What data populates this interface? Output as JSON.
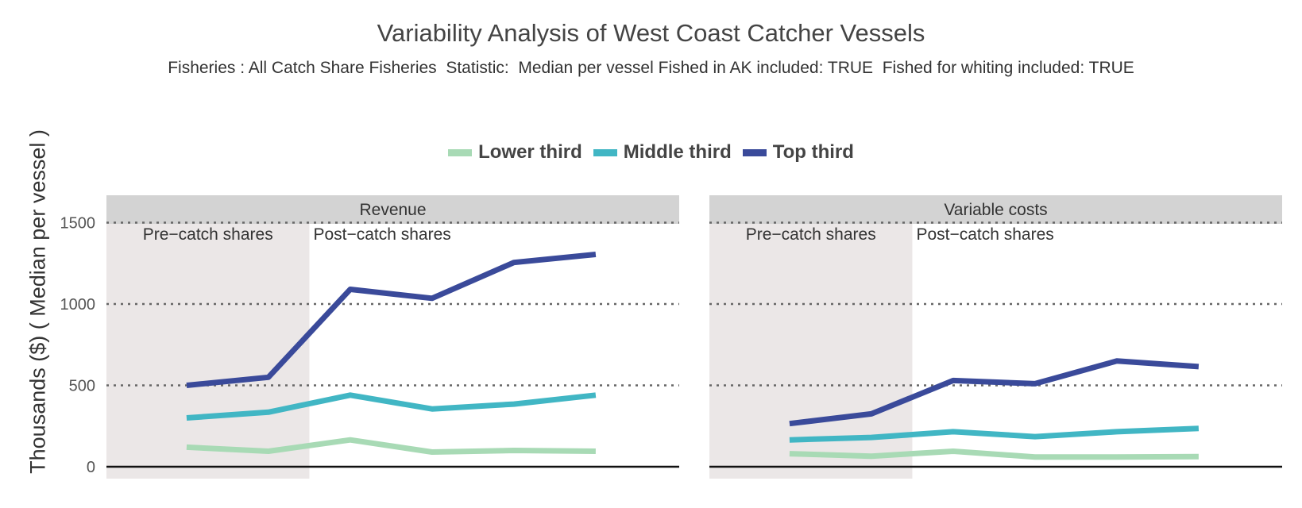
{
  "title": "Variability Analysis of West Coast Catcher Vessels",
  "subtitle": "Fisheries : All Catch Share Fisheries  Statistic:  Median per vessel Fished in AK included: TRUE  Fished for whiting included: TRUE",
  "legend": {
    "items": [
      {
        "label": "Lower third",
        "color": "#a8dab5"
      },
      {
        "label": "Middle third",
        "color": "#41b6c4"
      },
      {
        "label": "Top third",
        "color": "#3a4a9a"
      }
    ]
  },
  "ylabel": "Thousands ($) ( Median per vessel )",
  "chart_data": {
    "type": "line",
    "ylim": [
      -50,
      1500
    ],
    "yticks": [
      0,
      500,
      1000,
      1500
    ],
    "ytick_labels": [
      "0",
      "500",
      "1000",
      "1500"
    ],
    "grid": "dotted horizontal",
    "x_count": 6,
    "pre_catch_points": 2,
    "panels": [
      {
        "title": "Revenue",
        "pre_label": "Pre−catch shares",
        "post_label": "Post−catch shares",
        "series": [
          {
            "name": "Lower third",
            "values": [
              120,
              95,
              165,
              90,
              100,
              95
            ]
          },
          {
            "name": "Middle third",
            "values": [
              300,
              335,
              440,
              355,
              385,
              440
            ]
          },
          {
            "name": "Top third",
            "values": [
              500,
              550,
              1090,
              1035,
              1255,
              1305
            ]
          }
        ]
      },
      {
        "title": "Variable costs",
        "pre_label": "Pre−catch shares",
        "post_label": "Post−catch shares",
        "series": [
          {
            "name": "Lower third",
            "values": [
              80,
              65,
              95,
              60,
              60,
              62
            ]
          },
          {
            "name": "Middle third",
            "values": [
              165,
              180,
              215,
              185,
              215,
              235
            ]
          },
          {
            "name": "Top third",
            "values": [
              265,
              325,
              530,
              510,
              650,
              615
            ]
          }
        ]
      }
    ]
  }
}
